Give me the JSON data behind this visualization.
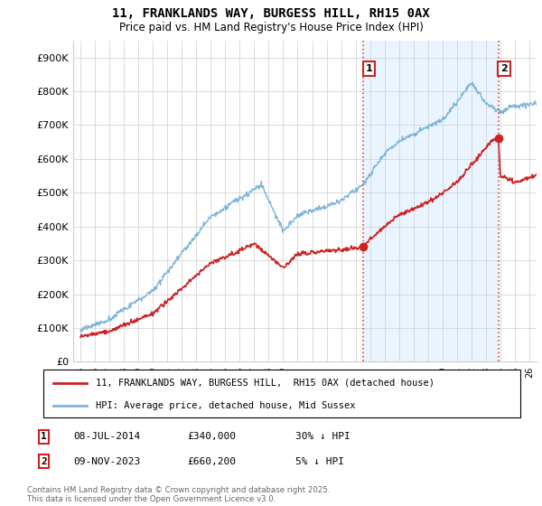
{
  "title1": "11, FRANKLANDS WAY, BURGESS HILL, RH15 0AX",
  "title2": "Price paid vs. HM Land Registry's House Price Index (HPI)",
  "ylabel_values": [
    "£0",
    "£100K",
    "£200K",
    "£300K",
    "£400K",
    "£500K",
    "£600K",
    "£700K",
    "£800K",
    "£900K"
  ],
  "y_ticks": [
    0,
    100000,
    200000,
    300000,
    400000,
    500000,
    600000,
    700000,
    800000,
    900000
  ],
  "ylim": [
    0,
    950000
  ],
  "xlim_start": 1994.5,
  "xlim_end": 2026.5,
  "hpi_color": "#7ab4d8",
  "price_color": "#cc2222",
  "vline_color": "#dd4444",
  "marker1_year": 2014.53,
  "marker1_price": 340000,
  "marker2_year": 2023.86,
  "marker2_price": 660200,
  "legend_label1": "11, FRANKLANDS WAY, BURGESS HILL,  RH15 0AX (detached house)",
  "legend_label2": "HPI: Average price, detached house, Mid Sussex",
  "note1_num": "1",
  "note1_date": "08-JUL-2014",
  "note1_price": "£340,000",
  "note1_hpi": "30% ↓ HPI",
  "note2_num": "2",
  "note2_date": "09-NOV-2023",
  "note2_price": "£660,200",
  "note2_hpi": "5% ↓ HPI",
  "footer": "Contains HM Land Registry data © Crown copyright and database right 2025.\nThis data is licensed under the Open Government Licence v3.0.",
  "background_color": "#ffffff",
  "grid_color": "#cccccc",
  "shade_color": "#ddeeff"
}
